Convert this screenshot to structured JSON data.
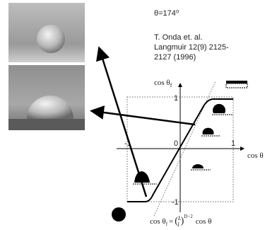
{
  "angle_label": "θ=174⁰",
  "citation": {
    "authors": "T. Onda et. al.",
    "line1": "Langmuir 12(9) 2125-",
    "line2": "2127 (1996)"
  },
  "plot": {
    "y_label": "cos θ",
    "y_label_sub": "f",
    "x_label": "cos θ",
    "y_ticks": [
      "1",
      "-1"
    ],
    "x_ticks": [
      "-1",
      "0",
      "1"
    ]
  },
  "formula": {
    "lhs": "cos θ",
    "sub": "f",
    "eq": "=",
    "open": "(",
    "num": "L",
    "den": "l",
    "close": ")",
    "exp": "D−2",
    "rhs": "cos θ"
  }
}
